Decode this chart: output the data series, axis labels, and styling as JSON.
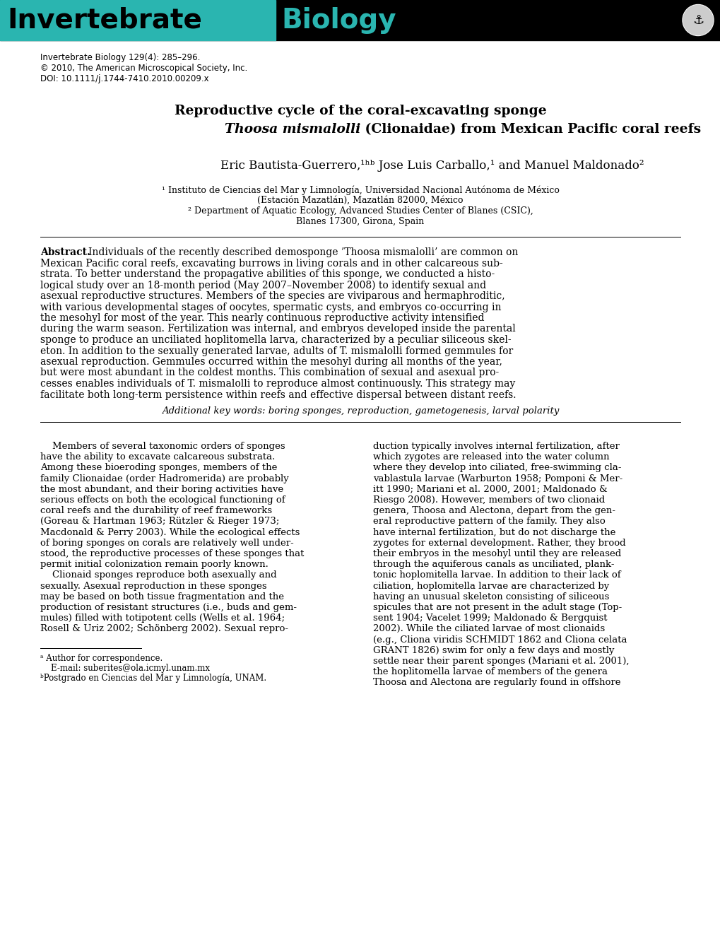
{
  "header_bg_color": "#000000",
  "header_teal_color": "#2ab5b0",
  "header_text1": "Invertebrate",
  "header_text2": "Biology",
  "journal_info": "Invertebrate Biology 129(4): 285–296.",
  "copyright": "© 2010, The American Microscopical Society, Inc.",
  "doi": "DOI: 10.1111/j.1744-7410.2010.00209.x",
  "title_line1": "Reproductive cycle of the coral-excavating sponge",
  "title_line2_italic": "Thoosa mismalolli",
  "title_line2_rest": " (Clionaidae) from Mexican Pacific coral reefs",
  "affil1": "¹ Instituto de Ciencias del Mar y Limnología, Universidad Nacional Autónoma de México",
  "affil1b": "(Estación Mazatlán), Mazatlán 82000, México",
  "affil2": "² Department of Aquatic Ecology, Advanced Studies Center of Blanes (CSIC),",
  "affil2b": "Blanes 17300, Girona, Spain",
  "keywords": "Additional key words: boring sponges, reproduction, gametogenesis, larval polarity",
  "footnote_a": "ᵃ Author for correspondence.",
  "footnote_email": "    E-mail: suberites@ola.icmyl.unam.mx",
  "footnote_b": "ᵇPostgrado en Ciencias del Mar y Limnología, UNAM.",
  "abstract_lines": [
    "Individuals of the recently described demosponge ’Thoosa mismalolli’ are common on",
    "Mexican Pacific coral reefs, excavating burrows in living corals and in other calcareous sub-",
    "strata. To better understand the propagative abilities of this sponge, we conducted a histo-",
    "logical study over an 18-month period (May 2007–November 2008) to identify sexual and",
    "asexual reproductive structures. Members of the species are viviparous and hermaphroditic,",
    "with various developmental stages of oocytes, spermatic cysts, and embryos co-occurring in",
    "the mesohyl for most of the year. This nearly continuous reproductive activity intensified",
    "during the warm season. Fertilization was internal, and embryos developed inside the parental",
    "sponge to produce an unciliated hoplitomella larva, characterized by a peculiar siliceous skel-",
    "eton. In addition to the sexually generated larvae, adults of T. mismalolli formed gemmules for",
    "asexual reproduction. Gemmules occurred within the mesohyl during all months of the year,",
    "but were most abundant in the coldest months. This combination of sexual and asexual pro-",
    "cesses enables individuals of T. mismalolli to reproduce almost continuously. This strategy may",
    "facilitate both long-term persistence within reefs and effective dispersal between distant reefs."
  ],
  "col1_lines": [
    "    Members of several taxonomic orders of sponges",
    "have the ability to excavate calcareous substrata.",
    "Among these bioeroding sponges, members of the",
    "family Clionaidae (order Hadromerida) are probably",
    "the most abundant, and their boring activities have",
    "serious effects on both the ecological functioning of",
    "coral reefs and the durability of reef frameworks",
    "(Goreau & Hartman 1963; Rützler & Rieger 1973;",
    "Macdonald & Perry 2003). While the ecological effects",
    "of boring sponges on corals are relatively well under-",
    "stood, the reproductive processes of these sponges that",
    "permit initial colonization remain poorly known.",
    "    Clionaid sponges reproduce both asexually and",
    "sexually. Asexual reproduction in these sponges",
    "may be based on both tissue fragmentation and the",
    "production of resistant structures (i.e., buds and gem-",
    "mules) filled with totipotent cells (Wells et al. 1964;",
    "Rosell & Uriz 2002; Schönberg 2002). Sexual repro-"
  ],
  "col2_lines": [
    "duction typically involves internal fertilization, after",
    "which zygotes are released into the water column",
    "where they develop into ciliated, free-swimming cla-",
    "vablastula larvae (Warburton 1958; Pomponi & Mer-",
    "itt 1990; Mariani et al. 2000, 2001; Maldonado &",
    "Riesgo 2008). However, members of two clionaid",
    "genera, Thoosa and Alectona, depart from the gen-",
    "eral reproductive pattern of the family. They also",
    "have internal fertilization, but do not discharge the",
    "zygotes for external development. Rather, they brood",
    "their embryos in the mesohyl until they are released",
    "through the aquiferous canals as unciliated, plank-",
    "tonic hoplomitella larvae. In addition to their lack of",
    "ciliation, hoplomitella larvae are characterized by",
    "having an unusual skeleton consisting of siliceous",
    "spicules that are not present in the adult stage (Top-",
    "sent 1904; Vacelet 1999; Maldonado & Bergquist",
    "2002). While the ciliated larvae of most clionaids",
    "(e.g., Cliona viridis SCHMIDT 1862 and Cliona celata",
    "GRANT 1826) swim for only a few days and mostly",
    "settle near their parent sponges (Mariani et al. 2001),",
    "the hoplitomella larvae of members of the genera",
    "Thoosa and Alectona are regularly found in offshore"
  ]
}
